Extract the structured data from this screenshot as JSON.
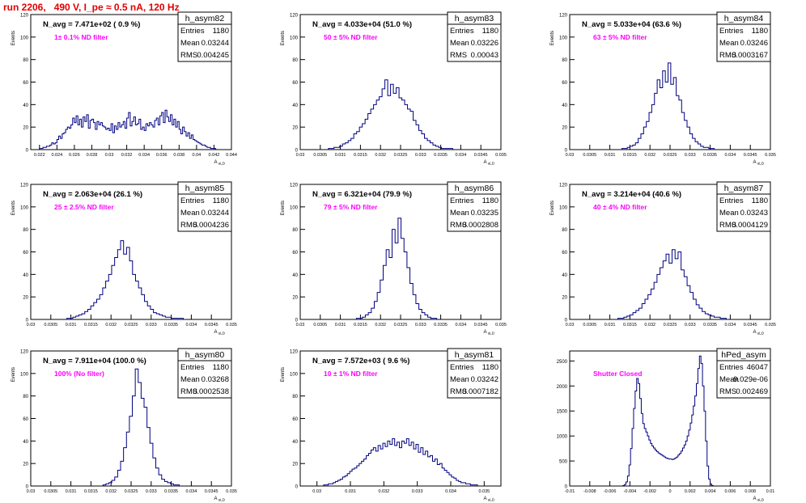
{
  "title": "run 2206,   490 V, I_pe ≈ 0.5 nA, 120 Hz",
  "colors": {
    "histogram": "#000080",
    "annotation": "#ff00ff",
    "title": "#e00000",
    "frame": "#000000"
  },
  "chart_data": [
    {
      "type": "histogram",
      "name": "h_asym82",
      "header": "N_avg = 7.471e+02 ( 0.9 %)",
      "note": "1± 0.1% ND filter",
      "stats": {
        "Entries": "1180",
        "Mean": "0.03244",
        "RMS": "0.004245"
      },
      "ylabel": "Events",
      "xlabel": "A_uLD",
      "xlim": [
        0.021,
        0.044
      ],
      "ylim": [
        0,
        120
      ],
      "xticks": [
        0.022,
        0.024,
        0.026,
        0.028,
        0.03,
        0.032,
        0.034,
        0.036,
        0.038,
        0.04,
        0.042,
        0.044
      ],
      "xtick_labels": [
        "0.022",
        "0.024",
        "0.026",
        "0.028",
        "0.03",
        "0.032",
        "0.034",
        "0.036",
        "0.038",
        "0.04",
        "0.042",
        "0.044"
      ],
      "yticks": [
        0,
        20,
        40,
        60,
        80,
        100,
        120
      ],
      "bin_edges": [
        0.022,
        0.0422
      ],
      "counts": [
        1,
        1,
        2,
        2,
        3,
        3,
        4,
        6,
        5,
        6,
        9,
        12,
        10,
        14,
        15,
        18,
        20,
        19,
        22,
        28,
        24,
        30,
        22,
        27,
        20,
        29,
        25,
        31,
        19,
        26,
        27,
        24,
        18,
        25,
        22,
        24,
        21,
        20,
        18,
        19,
        17,
        23,
        15,
        21,
        18,
        24,
        20,
        22,
        25,
        19,
        28,
        33,
        21,
        25,
        29,
        22,
        23,
        27,
        18,
        20,
        17,
        23,
        21,
        24,
        22,
        20,
        26,
        28,
        22,
        30,
        33,
        24,
        35,
        29,
        25,
        31,
        22,
        27,
        20,
        25,
        18,
        14,
        20,
        16,
        12,
        15,
        10,
        13,
        9,
        8,
        7,
        6,
        5,
        4,
        4,
        3,
        2,
        2,
        1,
        1,
        1
      ]
    },
    {
      "type": "histogram",
      "name": "h_asym83",
      "header": "N_avg = 4.033e+04 (51.0 %)",
      "note": "50 ± 5% ND filter",
      "stats": {
        "Entries": "1180",
        "Mean": "0.03226",
        "RMS": "0.00043"
      },
      "ylabel": "Events",
      "xlabel": "A_uLD",
      "xlim": [
        0.03,
        0.035
      ],
      "ylim": [
        0,
        120
      ],
      "xticks": [
        0.03,
        0.0305,
        0.031,
        0.0315,
        0.032,
        0.0325,
        0.033,
        0.0335,
        0.034,
        0.0345,
        0.035
      ],
      "xtick_labels": [
        "0.03",
        "0.0305",
        "0.031",
        "0.0315",
        "0.032",
        "0.0325",
        "0.033",
        "0.0335",
        "0.034",
        "0.0345",
        "0.035"
      ],
      "yticks": [
        0,
        20,
        40,
        60,
        80,
        100,
        120
      ],
      "bin_edges": [
        0.0307,
        0.0338
      ],
      "counts": [
        1,
        1,
        2,
        2,
        3,
        5,
        6,
        8,
        10,
        14,
        16,
        20,
        23,
        27,
        32,
        36,
        40,
        44,
        47,
        54,
        62,
        48,
        58,
        50,
        55,
        46,
        44,
        40,
        36,
        34,
        26,
        22,
        17,
        14,
        10,
        8,
        6,
        4,
        3,
        2,
        1,
        1,
        1,
        1
      ]
    },
    {
      "type": "histogram",
      "name": "h_asym84",
      "header": "N_avg = 5.033e+04 (63.6 %)",
      "note": "63 ± 5% ND filter",
      "stats": {
        "Entries": "1180",
        "Mean": "0.03246",
        "RMS": "0.0003167"
      },
      "ylabel": "Events",
      "xlabel": "A_uLD",
      "xlim": [
        0.03,
        0.035
      ],
      "ylim": [
        0,
        120
      ],
      "xticks": [
        0.03,
        0.0305,
        0.031,
        0.0315,
        0.032,
        0.0325,
        0.033,
        0.0335,
        0.034,
        0.0345,
        0.035
      ],
      "xtick_labels": [
        "0.03",
        "0.0305",
        "0.031",
        "0.0315",
        "0.032",
        "0.0325",
        "0.033",
        "0.0335",
        "0.034",
        "0.0345",
        "0.035"
      ],
      "yticks": [
        0,
        20,
        40,
        60,
        80,
        100,
        120
      ],
      "bin_edges": [
        0.0313,
        0.0336
      ],
      "counts": [
        1,
        1,
        2,
        3,
        4,
        6,
        10,
        14,
        20,
        25,
        33,
        40,
        50,
        62,
        55,
        70,
        60,
        77,
        58,
        64,
        48,
        44,
        33,
        26,
        20,
        14,
        10,
        7,
        5,
        3,
        2,
        2,
        1,
        1
      ]
    },
    {
      "type": "histogram",
      "name": "h_asym85",
      "header": "N_avg = 2.063e+04 (26.1 %)",
      "note": "25 ± 2.5% ND filter",
      "stats": {
        "Entries": "1180",
        "Mean": "0.03244",
        "RMS": "0.0004236"
      },
      "ylabel": "Events",
      "xlabel": "A_uLD",
      "xlim": [
        0.03,
        0.035
      ],
      "ylim": [
        0,
        120
      ],
      "xticks": [
        0.03,
        0.0305,
        0.031,
        0.0315,
        0.032,
        0.0325,
        0.033,
        0.0335,
        0.034,
        0.0345,
        0.035
      ],
      "xtick_labels": [
        "0.03",
        "0.0305",
        "0.031",
        "0.0315",
        "0.032",
        "0.0325",
        "0.033",
        "0.0335",
        "0.034",
        "0.0345",
        "0.035"
      ],
      "yticks": [
        0,
        20,
        40,
        60,
        80,
        100,
        120
      ],
      "bin_edges": [
        0.0309,
        0.0338
      ],
      "counts": [
        1,
        1,
        2,
        3,
        4,
        5,
        7,
        9,
        12,
        15,
        18,
        22,
        28,
        34,
        40,
        48,
        55,
        62,
        70,
        58,
        64,
        52,
        40,
        34,
        28,
        22,
        16,
        12,
        9,
        6,
        5,
        4,
        3,
        2,
        2,
        1,
        1,
        1,
        1
      ]
    },
    {
      "type": "histogram",
      "name": "h_asym86",
      "header": "N_avg = 6.321e+04 (79.9 %)",
      "note": "79 ± 5% ND filter",
      "stats": {
        "Entries": "1180",
        "Mean": "0.03235",
        "RMS": "0.0002808"
      },
      "ylabel": "Events",
      "xlabel": "A_uLD",
      "xlim": [
        0.03,
        0.035
      ],
      "ylim": [
        0,
        120
      ],
      "xticks": [
        0.03,
        0.0305,
        0.031,
        0.0315,
        0.032,
        0.0325,
        0.033,
        0.0335,
        0.034,
        0.0345,
        0.035
      ],
      "xtick_labels": [
        "0.03",
        "0.0305",
        "0.031",
        "0.0315",
        "0.032",
        "0.0325",
        "0.033",
        "0.0335",
        "0.034",
        "0.0345",
        "0.035"
      ],
      "yticks": [
        0,
        20,
        40,
        60,
        80,
        100,
        120
      ],
      "bin_edges": [
        0.0314,
        0.0334
      ],
      "counts": [
        1,
        1,
        2,
        4,
        6,
        10,
        16,
        24,
        35,
        48,
        62,
        55,
        80,
        68,
        90,
        72,
        60,
        46,
        32,
        22,
        14,
        9,
        6,
        4,
        2,
        1,
        1
      ]
    },
    {
      "type": "histogram",
      "name": "h_asym87",
      "header": "N_avg = 3.214e+04 (40.6 %)",
      "note": "40 ± 4% ND filter",
      "stats": {
        "Entries": "1180",
        "Mean": "0.03243",
        "RMS": "0.0004129"
      },
      "ylabel": "Events",
      "xlabel": "A_uLD",
      "xlim": [
        0.03,
        0.035
      ],
      "ylim": [
        0,
        120
      ],
      "xticks": [
        0.03,
        0.0305,
        0.031,
        0.0315,
        0.032,
        0.0325,
        0.033,
        0.0335,
        0.034,
        0.0345,
        0.035
      ],
      "xtick_labels": [
        "0.03",
        "0.0305",
        "0.031",
        "0.0315",
        "0.032",
        "0.0325",
        "0.033",
        "0.0335",
        "0.034",
        "0.0345",
        "0.035"
      ],
      "yticks": [
        0,
        20,
        40,
        60,
        80,
        100,
        120
      ],
      "bin_edges": [
        0.0312,
        0.0339
      ],
      "counts": [
        1,
        1,
        2,
        3,
        4,
        6,
        8,
        10,
        14,
        18,
        22,
        27,
        33,
        40,
        46,
        52,
        58,
        50,
        62,
        54,
        60,
        44,
        38,
        30,
        24,
        18,
        13,
        10,
        7,
        5,
        4,
        3,
        2,
        2,
        1,
        1
      ]
    },
    {
      "type": "histogram",
      "name": "h_asym80",
      "header": "N_avg = 7.911e+04 (100.0 %)",
      "note": "100% (No filter)",
      "stats": {
        "Entries": "1180",
        "Mean": "0.03268",
        "RMS": "0.0002538"
      },
      "ylabel": "Events",
      "xlabel": "A_uLD",
      "xlim": [
        0.03,
        0.035
      ],
      "ylim": [
        0,
        120
      ],
      "xticks": [
        0.03,
        0.0305,
        0.031,
        0.0315,
        0.032,
        0.0325,
        0.033,
        0.0335,
        0.034,
        0.0345,
        0.035
      ],
      "xtick_labels": [
        "0.03",
        "0.0305",
        "0.031",
        "0.0315",
        "0.032",
        "0.0325",
        "0.033",
        "0.0335",
        "0.034",
        "0.0345",
        "0.035"
      ],
      "yticks": [
        0,
        20,
        40,
        60,
        80,
        100,
        120
      ],
      "bin_edges": [
        0.0318,
        0.0337
      ],
      "counts": [
        1,
        2,
        3,
        5,
        8,
        14,
        22,
        34,
        48,
        62,
        80,
        104,
        92,
        78,
        70,
        52,
        38,
        25,
        16,
        10,
        6,
        4,
        3,
        2,
        1,
        1
      ]
    },
    {
      "type": "histogram",
      "name": "h_asym81",
      "header": "N_avg = 7.572e+03 ( 9.6 %)",
      "note": "10 ± 1% ND filter",
      "stats": {
        "Entries": "1180",
        "Mean": "0.03242",
        "RMS": "0.0007182"
      },
      "ylabel": "Events",
      "xlabel": "A_uLD",
      "xlim": [
        0.0295,
        0.0355
      ],
      "ylim": [
        0,
        120
      ],
      "xticks": [
        0.03,
        0.031,
        0.032,
        0.033,
        0.034,
        0.035
      ],
      "xtick_labels": [
        "0.03",
        "0.031",
        "0.032",
        "0.033",
        "0.034",
        "0.035"
      ],
      "yticks": [
        0,
        20,
        40,
        60,
        80,
        100,
        120
      ],
      "bin_edges": [
        0.0302,
        0.0348
      ],
      "counts": [
        1,
        1,
        2,
        2,
        3,
        4,
        5,
        6,
        8,
        9,
        11,
        13,
        15,
        16,
        18,
        20,
        22,
        24,
        27,
        29,
        32,
        34,
        31,
        36,
        33,
        38,
        35,
        40,
        37,
        42,
        36,
        39,
        34,
        40,
        38,
        42,
        36,
        39,
        33,
        37,
        30,
        34,
        28,
        31,
        26,
        27,
        22,
        24,
        19,
        20,
        16,
        14,
        12,
        10,
        8,
        7,
        5,
        4,
        3,
        3,
        2,
        2,
        1,
        1,
        1
      ]
    },
    {
      "type": "histogram",
      "name": "hPed_asym",
      "header": "",
      "note": "Shutter Closed",
      "stats": {
        "Entries": "46047",
        "Mean": "-9.029e-06",
        "RMS": "0.002469"
      },
      "ylabel": "",
      "xlabel": "A_uLD",
      "xlim": [
        -0.01,
        0.01
      ],
      "ylim": [
        0,
        2700
      ],
      "xticks": [
        -0.01,
        -0.008,
        -0.006,
        -0.004,
        -0.002,
        0,
        0.002,
        0.004,
        0.006,
        0.008,
        0.01
      ],
      "xtick_labels": [
        "-0.01",
        "-0.008",
        "-0.006",
        "-0.004",
        "-0.002",
        "0",
        "0.002",
        "0.004",
        "0.006",
        "0.008",
        "0.01"
      ],
      "yticks": [
        0,
        500,
        1000,
        1500,
        2000,
        2500
      ],
      "bin_edges": [
        -0.0047,
        0.0043
      ],
      "counts": [
        10,
        30,
        80,
        200,
        420,
        750,
        1150,
        1550,
        1900,
        2150,
        2050,
        1750,
        1450,
        1250,
        1150,
        1080,
        1000,
        920,
        850,
        800,
        760,
        720,
        690,
        660,
        640,
        620,
        600,
        580,
        560,
        550,
        540,
        540,
        530,
        540,
        560,
        580,
        620,
        650,
        700,
        760,
        820,
        900,
        1000,
        1120,
        1260,
        1420,
        1600,
        1800,
        2050,
        2350,
        2600,
        2450,
        2000,
        1500,
        900,
        400,
        140,
        40,
        10
      ]
    }
  ]
}
